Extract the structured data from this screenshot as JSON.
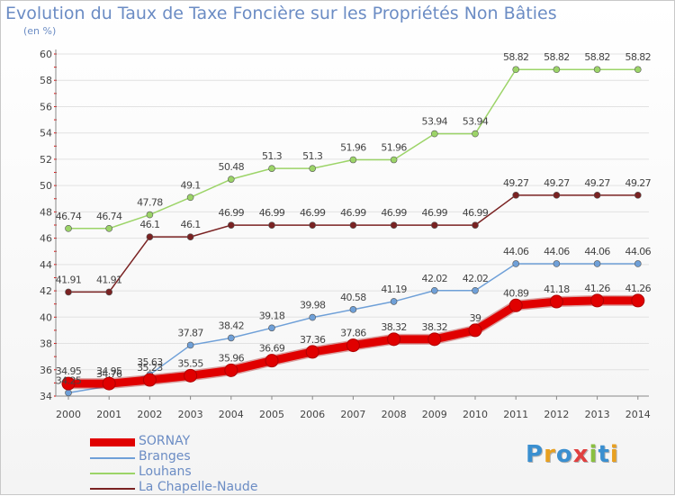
{
  "title": "Evolution du Taux de Taxe Foncière sur les Propriétés Non Bâties",
  "unit": "(en %)",
  "logo": "Proxiti",
  "chart_data": {
    "type": "line",
    "x": [
      2000,
      2001,
      2002,
      2003,
      2004,
      2005,
      2006,
      2007,
      2008,
      2009,
      2010,
      2011,
      2012,
      2013,
      2014
    ],
    "xlabels": [
      "2000",
      "2001",
      "2002",
      "2003",
      "2004",
      "2005",
      "2006",
      "2007",
      "2008",
      "2009",
      "2010",
      "2011",
      "2012",
      "2013",
      "2014"
    ],
    "ylim": [
      34,
      60
    ],
    "yticks": [
      34,
      36,
      38,
      40,
      42,
      44,
      46,
      48,
      50,
      52,
      54,
      56,
      58,
      60
    ],
    "ytick_labels": [
      "34",
      "36",
      "38",
      "40",
      "42",
      "44",
      "46",
      "48",
      "50",
      "52",
      "54",
      "56",
      "58",
      "60"
    ],
    "grid": "horizontal",
    "legend": "bottom-left",
    "series": [
      {
        "name": "SORNAY",
        "color": "#e00000",
        "values": [
          34.95,
          34.95,
          35.23,
          35.55,
          35.96,
          36.69,
          37.36,
          37.86,
          38.32,
          38.32,
          39,
          40.89,
          41.18,
          41.26,
          41.26
        ],
        "labels": [
          "34.95",
          "34.95",
          "35.23",
          "35.55",
          "35.96",
          "36.69",
          "37.36",
          "37.86",
          "38.32",
          "38.32",
          "39",
          "40.89",
          "41.18",
          "41.26",
          "41.26"
        ]
      },
      {
        "name": "Branges",
        "color": "#6fa0d8",
        "values": [
          34.25,
          34.76,
          35.63,
          37.87,
          38.42,
          39.18,
          39.98,
          40.58,
          41.19,
          42.02,
          42.02,
          44.06,
          44.06,
          44.06,
          44.06
        ],
        "labels": [
          "34.25",
          "34.76",
          "35.63",
          "37.87",
          "38.42",
          "39.18",
          "39.98",
          "40.58",
          "41.19",
          "42.02",
          "42.02",
          "44.06",
          "44.06",
          "44.06",
          "44.06"
        ]
      },
      {
        "name": "Louhans",
        "color": "#9cd468",
        "values": [
          46.74,
          46.74,
          47.78,
          49.1,
          50.48,
          51.3,
          51.3,
          51.96,
          51.96,
          53.94,
          53.94,
          58.82,
          58.82,
          58.82,
          58.82
        ],
        "labels": [
          "46.74",
          "46.74",
          "47.78",
          "49.1",
          "50.48",
          "51.3",
          "51.3",
          "51.96",
          "51.96",
          "53.94",
          "53.94",
          "58.82",
          "58.82",
          "58.82",
          "58.82"
        ]
      },
      {
        "name": "La Chapelle-Naude",
        "color": "#7a2222",
        "values": [
          41.91,
          41.91,
          46.1,
          46.1,
          46.99,
          46.99,
          46.99,
          46.99,
          46.99,
          46.99,
          46.99,
          49.27,
          49.27,
          49.27,
          49.27
        ],
        "labels": [
          "41.91",
          "41.91",
          "46.1",
          "46.1",
          "46.99",
          "46.99",
          "46.99",
          "46.99",
          "46.99",
          "46.99",
          "46.99",
          "49.27",
          "49.27",
          "49.27",
          "49.27"
        ]
      }
    ]
  }
}
